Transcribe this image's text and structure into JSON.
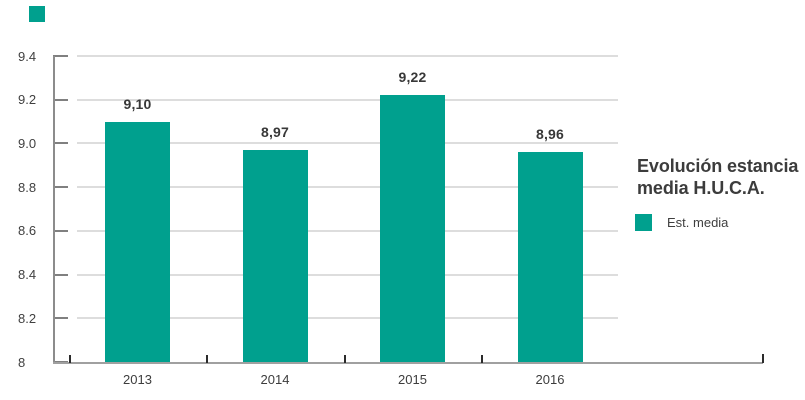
{
  "chart_data": {
    "type": "bar",
    "title": "Evolución estancia media H.U.C.A.",
    "categories": [
      "2013",
      "2014",
      "2015",
      "2016"
    ],
    "series": [
      {
        "name": "Est. media",
        "values": [
          9.1,
          8.97,
          9.22,
          8.96
        ],
        "value_labels": [
          "9,10",
          "8,97",
          "9,22",
          "8,96"
        ],
        "color": "#00A08E"
      }
    ],
    "ylim": [
      8,
      9.4
    ],
    "yticks": [
      {
        "value": 8,
        "label": "8"
      },
      {
        "value": 8.2,
        "label": "8.2"
      },
      {
        "value": 8.4,
        "label": "8.4"
      },
      {
        "value": 8.6,
        "label": "8.6"
      },
      {
        "value": 8.8,
        "label": "8.8"
      },
      {
        "value": 9.0,
        "label": "9.0"
      },
      {
        "value": 9.2,
        "label": "9.2"
      },
      {
        "value": 9.4,
        "label": "9.4"
      }
    ],
    "grid": true,
    "legend_position": "right"
  },
  "legend": {
    "items": [
      {
        "label": "Est. media",
        "color": "#00A08E"
      }
    ]
  },
  "brand": {
    "corner_square_color": "#00A08E"
  },
  "colors": {
    "bar": "#00A08E",
    "gridline": "#DDDDDD",
    "y_axis": "#8C8C8C",
    "y_tick": "#808080",
    "x_axis": "#A0A0A0",
    "category_tick": "#2B2B2B",
    "text": "#404040",
    "title": "#3C3C3C"
  }
}
